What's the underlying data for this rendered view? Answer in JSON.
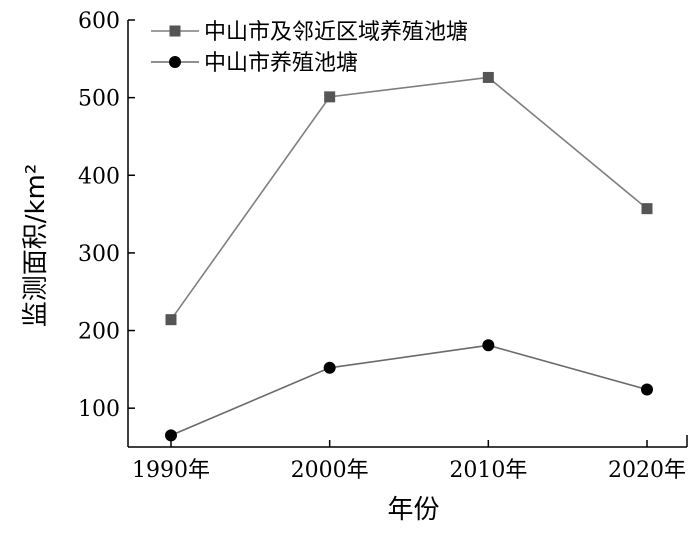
{
  "chart_data": {
    "type": "line",
    "title": "",
    "xlabel": "年份",
    "ylabel": "监测面积/km²",
    "categories": [
      "1990年",
      "2000年",
      "2010年",
      "2020年"
    ],
    "ylim": [
      50,
      600
    ],
    "yticks": [
      100,
      200,
      300,
      400,
      500,
      600
    ],
    "grid": false,
    "legend_position": "top-left",
    "series": [
      {
        "name": "中山市及邻近区域养殖池塘",
        "values": [
          214,
          501,
          526,
          357
        ],
        "marker": "square",
        "color": "#7f7f7f",
        "marker_color": "#555555"
      },
      {
        "name": "中山市养殖池塘",
        "values": [
          65,
          152,
          181,
          124
        ],
        "marker": "circle",
        "color": "#6a6a6a",
        "marker_color": "#000000"
      }
    ]
  }
}
